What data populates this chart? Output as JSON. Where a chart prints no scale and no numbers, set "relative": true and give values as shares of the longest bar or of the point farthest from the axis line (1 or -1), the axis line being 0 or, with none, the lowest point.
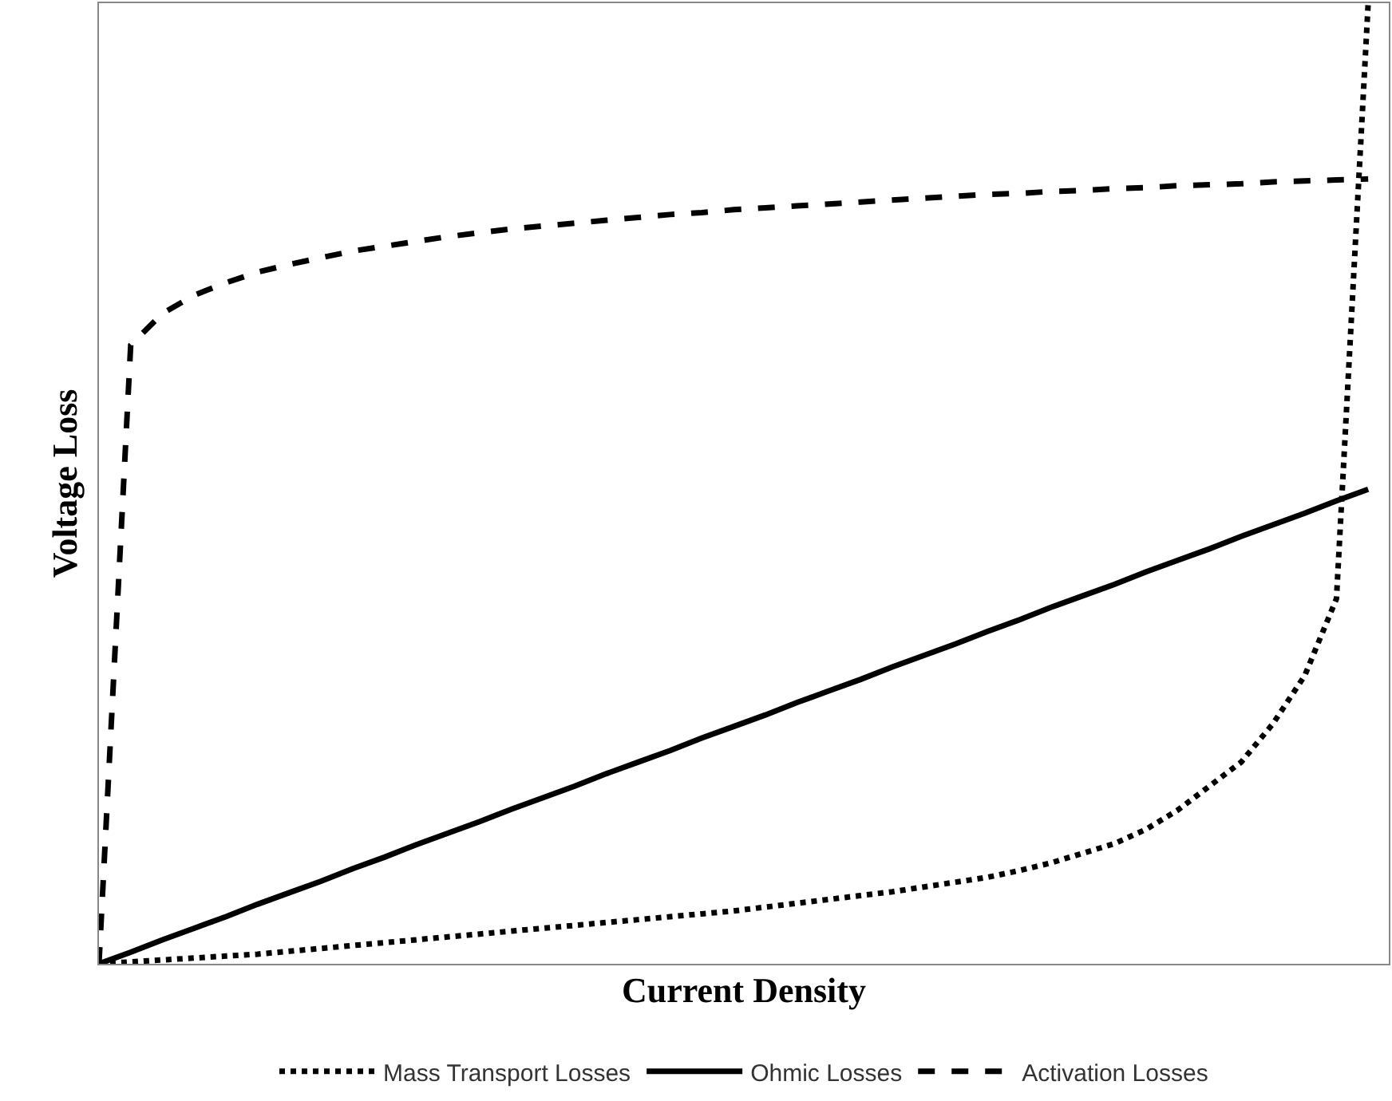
{
  "chart_data": {
    "type": "line",
    "relative": true,
    "xlabel": "Current Density",
    "ylabel": "Voltage Loss",
    "legend": "bottom",
    "marker": "none",
    "categories": [
      null,
      null,
      null,
      null,
      null,
      null,
      null,
      null,
      null,
      null,
      null,
      null,
      null,
      null,
      null,
      null,
      null,
      null,
      null,
      null,
      null,
      null,
      null,
      null,
      null,
      null,
      null,
      null,
      null,
      null,
      null,
      null,
      null,
      null,
      null,
      null,
      null,
      null,
      null,
      null,
      null
    ],
    "series": [
      {
        "name": "Mass Transport Losses",
        "color": "#000000",
        "line_style": "dotted",
        "values": [
          0,
          0.002,
          0.004,
          0.006,
          0.008,
          0.01,
          0.013,
          0.016,
          0.019,
          0.022,
          0.025,
          0.028,
          0.031,
          0.034,
          0.037,
          0.04,
          0.043,
          0.046,
          0.049,
          0.052,
          0.055,
          0.059,
          0.063,
          0.067,
          0.071,
          0.075,
          0.08,
          0.085,
          0.09,
          0.097,
          0.105,
          0.115,
          0.125,
          0.14,
          0.16,
          0.185,
          0.21,
          0.25,
          0.3,
          0.38,
          1.0
        ]
      },
      {
        "name": "Ohmic Losses",
        "color": "#000000",
        "line_style": "solid",
        "values": [
          0,
          0.012,
          0.025,
          0.037,
          0.049,
          0.062,
          0.074,
          0.086,
          0.099,
          0.111,
          0.124,
          0.136,
          0.148,
          0.161,
          0.173,
          0.185,
          0.198,
          0.21,
          0.222,
          0.235,
          0.247,
          0.259,
          0.272,
          0.284,
          0.296,
          0.309,
          0.321,
          0.333,
          0.346,
          0.358,
          0.371,
          0.383,
          0.395,
          0.408,
          0.42,
          0.432,
          0.445,
          0.457,
          0.469,
          0.482,
          0.494
        ]
      },
      {
        "name": "Activation Losses",
        "color": "#000000",
        "line_style": "dashed",
        "values": [
          0,
          0.644,
          0.677,
          0.696,
          0.709,
          0.72,
          0.728,
          0.735,
          0.742,
          0.747,
          0.752,
          0.757,
          0.761,
          0.765,
          0.768,
          0.771,
          0.774,
          0.777,
          0.78,
          0.782,
          0.785,
          0.787,
          0.789,
          0.791,
          0.793,
          0.795,
          0.797,
          0.799,
          0.801,
          0.802,
          0.804,
          0.805,
          0.807,
          0.808,
          0.81,
          0.811,
          0.812,
          0.814,
          0.815,
          0.816,
          0.817
        ]
      }
    ]
  }
}
